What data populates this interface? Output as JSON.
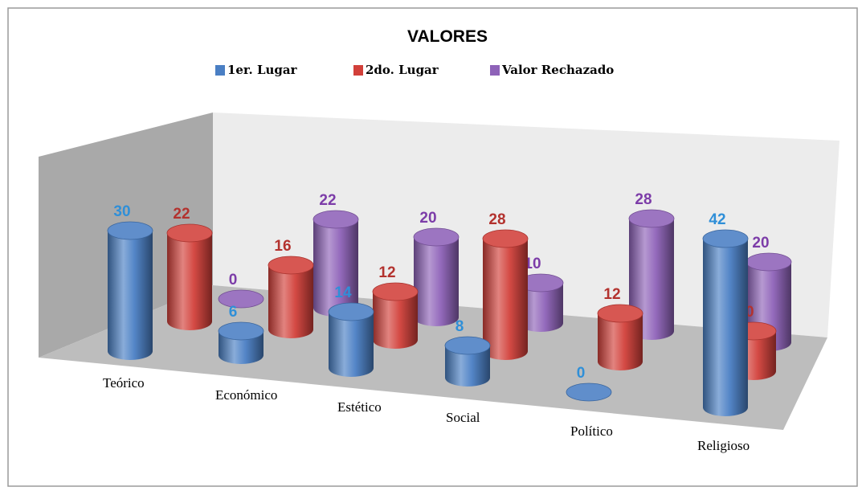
{
  "chart_data": {
    "type": "bar3d",
    "title": "VALORES",
    "categories": [
      "Teórico",
      "Económico",
      "Estético",
      "Social",
      "Político",
      "Religioso"
    ],
    "series": [
      {
        "name": "1er. Lugar",
        "color": "#4a7fc4",
        "label_color": "#2f8fd8",
        "values": [
          30,
          6,
          14,
          8,
          0,
          42
        ]
      },
      {
        "name": "2do. Lugar",
        "color": "#d2403a",
        "label_color": "#b3322e",
        "values": [
          22,
          16,
          12,
          28,
          12,
          10
        ]
      },
      {
        "name": "Valor Rechazado",
        "color": "#8e62b8",
        "label_color": "#7c3ca8",
        "values": [
          0,
          22,
          20,
          10,
          28,
          20
        ]
      }
    ]
  }
}
